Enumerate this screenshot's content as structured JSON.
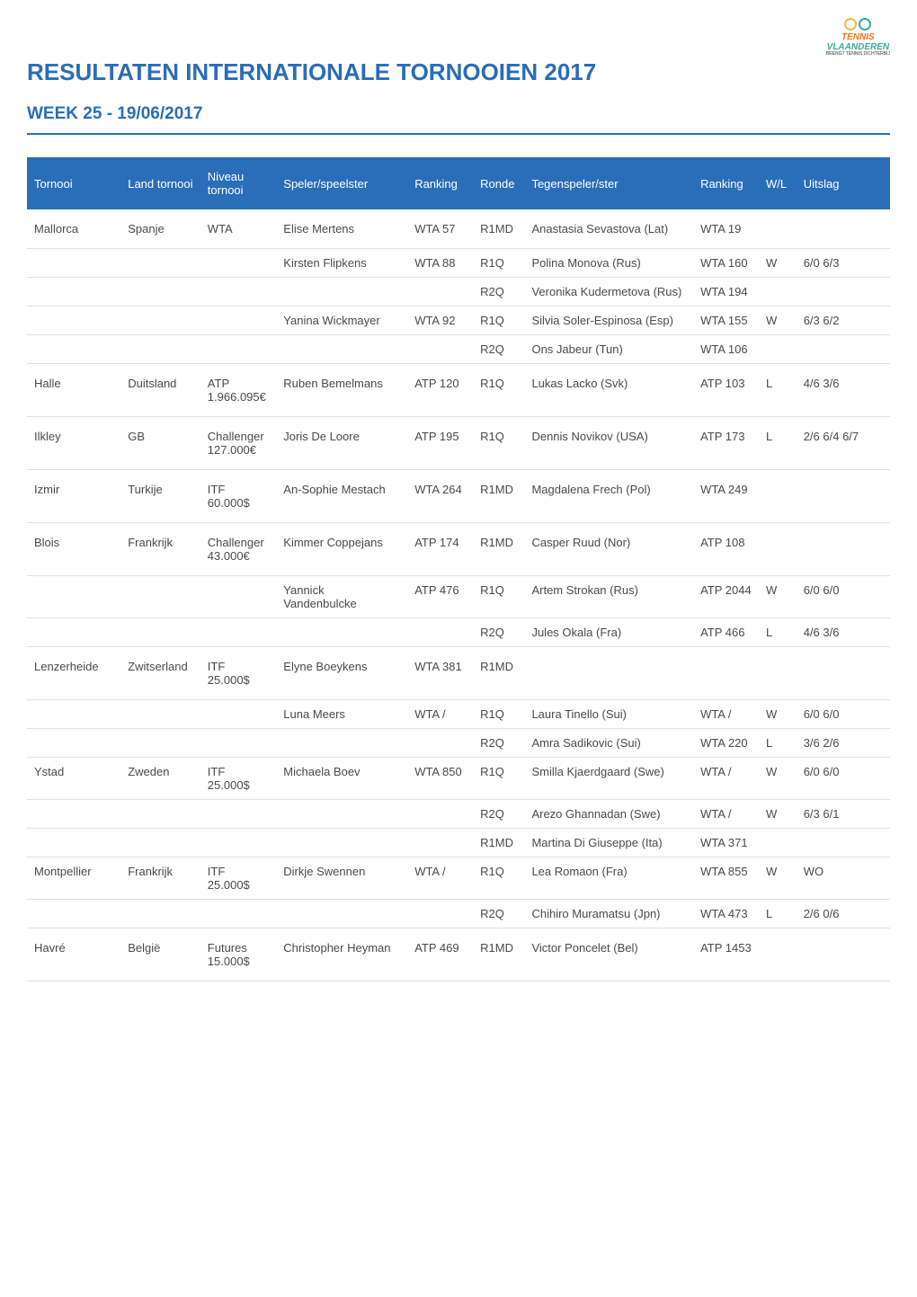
{
  "header": {
    "title": "RESULTATEN INTERNATIONALE TORNOOIEN 2017",
    "week_title": "WEEK 25 - 19/06/2017",
    "logo": {
      "line1": "TENNIS",
      "line2": "VLAANDEREN",
      "tagline": "BRENGT TENNIS DICHTERBIJ"
    },
    "colors": {
      "title": "#2a6db8",
      "header_bg": "#2a6db8",
      "logo_orange": "#e67817",
      "logo_teal": "#3ba99c",
      "logo_yellow": "#f4b942"
    }
  },
  "table": {
    "columns": {
      "tornooi": "Tornooi",
      "land": "Land tornooi",
      "niveau": "Niveau tornooi",
      "speler": "Speler/speelster",
      "ranking": "Ranking",
      "ronde": "Ronde",
      "tegen": "Tegenspeler/ster",
      "ranking2": "Ranking",
      "wl": "W/L",
      "uitslag": "Uitslag"
    },
    "rows": [
      {
        "tornooi": "Mallorca",
        "land": "Spanje",
        "niveau": "WTA",
        "speler": "Elise Mertens",
        "ranking": "WTA 57",
        "ronde": "R1MD",
        "tegen": "Anastasia Sevastova (Lat)",
        "ranking2": "WTA 19",
        "wl": "",
        "uitslag": ""
      },
      {
        "tornooi": "",
        "land": "",
        "niveau": "",
        "speler": "Kirsten Flipkens",
        "ranking": "WTA 88",
        "ronde": "R1Q",
        "tegen": "Polina Monova (Rus)",
        "ranking2": "WTA 160",
        "wl": "W",
        "uitslag": "6/0 6/3",
        "sub": true
      },
      {
        "tornooi": "",
        "land": "",
        "niveau": "",
        "speler": "",
        "ranking": "",
        "ronde": "R2Q",
        "tegen": "Veronika Kudermetova (Rus)",
        "ranking2": "WTA 194",
        "wl": "",
        "uitslag": "",
        "sub": true,
        "last": true
      },
      {
        "tornooi": "",
        "land": "",
        "niveau": "",
        "speler": "Yanina Wickmayer",
        "ranking": "WTA 92",
        "ronde": "R1Q",
        "tegen": "Silvia Soler-Espinosa (Esp)",
        "ranking2": "WTA 155",
        "wl": "W",
        "uitslag": "6/3 6/2",
        "sub": true
      },
      {
        "tornooi": "",
        "land": "",
        "niveau": "",
        "speler": "",
        "ranking": "",
        "ronde": "R2Q",
        "tegen": "Ons Jabeur (Tun)",
        "ranking2": "WTA 106",
        "wl": "",
        "uitslag": "",
        "sub": true,
        "last": true
      },
      {
        "tornooi": "Halle",
        "land": "Duitsland",
        "niveau": "ATP 1.966.095€",
        "speler": "Ruben Bemelmans",
        "ranking": "ATP 120",
        "ronde": "R1Q",
        "tegen": "Lukas Lacko (Svk)",
        "ranking2": "ATP 103",
        "wl": "L",
        "uitslag": "4/6 3/6"
      },
      {
        "tornooi": "Ilkley",
        "land": "GB",
        "niveau": "Challenger 127.000€",
        "speler": "Joris De Loore",
        "ranking": "ATP 195",
        "ronde": "R1Q",
        "tegen": "Dennis Novikov (USA)",
        "ranking2": "ATP 173",
        "wl": "L",
        "uitslag": "2/6 6/4 6/7"
      },
      {
        "tornooi": "Izmir",
        "land": "Turkije",
        "niveau": "ITF 60.000$",
        "speler": "An-Sophie Mestach",
        "ranking": "WTA 264",
        "ronde": "R1MD",
        "tegen": "Magdalena Frech (Pol)",
        "ranking2": "WTA 249",
        "wl": "",
        "uitslag": ""
      },
      {
        "tornooi": "Blois",
        "land": "Frankrijk",
        "niveau": "Challenger 43.000€",
        "speler": "Kimmer Coppejans",
        "ranking": "ATP 174",
        "ronde": "R1MD",
        "tegen": "Casper Ruud (Nor)",
        "ranking2": "ATP 108",
        "wl": "",
        "uitslag": ""
      },
      {
        "tornooi": "",
        "land": "",
        "niveau": "",
        "speler": "Yannick Vandenbulcke",
        "ranking": "ATP 476",
        "ronde": "R1Q",
        "tegen": "Artem Strokan (Rus)",
        "ranking2": "ATP 2044",
        "wl": "W",
        "uitslag": "6/0 6/0",
        "sub": true
      },
      {
        "tornooi": "",
        "land": "",
        "niveau": "",
        "speler": "",
        "ranking": "",
        "ronde": "R2Q",
        "tegen": "Jules Okala (Fra)",
        "ranking2": "ATP 466",
        "wl": "L",
        "uitslag": "4/6 3/6",
        "sub": true,
        "last": true
      },
      {
        "tornooi": "Lenzerheide",
        "land": "Zwitserland",
        "niveau": "ITF 25.000$",
        "speler": "Elyne Boeykens",
        "ranking": "WTA 381",
        "ronde": "R1MD",
        "tegen": "",
        "ranking2": "",
        "wl": "",
        "uitslag": ""
      },
      {
        "tornooi": "",
        "land": "",
        "niveau": "",
        "speler": "Luna Meers",
        "ranking": "WTA /",
        "ronde": "R1Q",
        "tegen": "Laura Tinello (Sui)",
        "ranking2": "WTA /",
        "wl": "W",
        "uitslag": "6/0 6/0",
        "sub": true
      },
      {
        "tornooi": "",
        "land": "",
        "niveau": "",
        "speler": "",
        "ranking": "",
        "ronde": "R2Q",
        "tegen": "Amra Sadikovic (Sui)",
        "ranking2": "WTA 220",
        "wl": "L",
        "uitslag": "3/6 2/6",
        "sub": true,
        "last": true
      },
      {
        "tornooi": "Ystad",
        "land": "Zweden",
        "niveau": "ITF 25.000$",
        "speler": "Michaela Boev",
        "ranking": "WTA 850",
        "ronde": "R1Q",
        "tegen": "Smilla Kjaerdgaard (Swe)",
        "ranking2": "WTA /",
        "wl": "W",
        "uitslag": "6/0 6/0",
        "sub": true
      },
      {
        "tornooi": "",
        "land": "",
        "niveau": "",
        "speler": "",
        "ranking": "",
        "ronde": "R2Q",
        "tegen": "Arezo Ghannadan (Swe)",
        "ranking2": "WTA /",
        "wl": "W",
        "uitslag": "6/3 6/1",
        "sub": true
      },
      {
        "tornooi": "",
        "land": "",
        "niveau": "",
        "speler": "",
        "ranking": "",
        "ronde": "R1MD",
        "tegen": "Martina Di Giuseppe (Ita)",
        "ranking2": "WTA 371",
        "wl": "",
        "uitslag": "",
        "sub": true,
        "last": true
      },
      {
        "tornooi": "Montpellier",
        "land": "Frankrijk",
        "niveau": "ITF 25.000$",
        "speler": "Dirkje Swennen",
        "ranking": "WTA /",
        "ronde": "R1Q",
        "tegen": "Lea Romaon (Fra)",
        "ranking2": "WTA 855",
        "wl": "W",
        "uitslag": "WO",
        "sub": true
      },
      {
        "tornooi": "",
        "land": "",
        "niveau": "",
        "speler": "",
        "ranking": "",
        "ronde": "R2Q",
        "tegen": "Chihiro Muramatsu (Jpn)",
        "ranking2": "WTA 473",
        "wl": "L",
        "uitslag": "2/6 0/6",
        "sub": true,
        "last": true
      },
      {
        "tornooi": "Havré",
        "land": "België",
        "niveau": "Futures 15.000$",
        "speler": "Christopher Heyman",
        "ranking": "ATP 469",
        "ronde": "R1MD",
        "tegen": "Victor Poncelet (Bel)",
        "ranking2": "ATP 1453",
        "wl": "",
        "uitslag": ""
      }
    ]
  }
}
